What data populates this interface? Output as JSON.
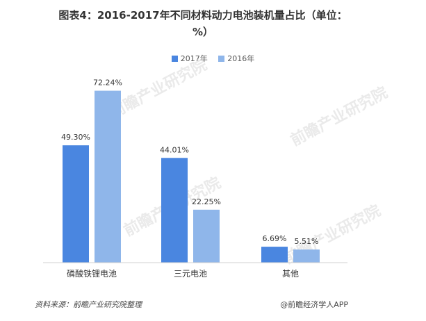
{
  "chart_data": {
    "type": "bar",
    "title": "图表4：2016-2017年不同材料动力电池装机量占比（单位：%）",
    "categories": [
      "磷酸铁锂电池",
      "三元电池",
      "其他"
    ],
    "series": [
      {
        "name": "2017年",
        "values": [
          49.3,
          44.01,
          6.69
        ],
        "labels": [
          "49.30%",
          "44.01%",
          "6.69%"
        ],
        "color": "#4a86e0"
      },
      {
        "name": "2016年",
        "values": [
          72.24,
          22.25,
          5.51
        ],
        "labels": [
          "72.24%",
          "22.25%",
          "5.51%"
        ],
        "color": "#8fb6ea"
      }
    ],
    "ylim": [
      0,
      80
    ],
    "grid": false,
    "legend_position": "top-center"
  },
  "footer": {
    "source": "资料来源：前瞻产业研究院整理",
    "credit": "@前瞻经济学人APP"
  },
  "watermark": {
    "text": "前瞻产业研究院"
  }
}
